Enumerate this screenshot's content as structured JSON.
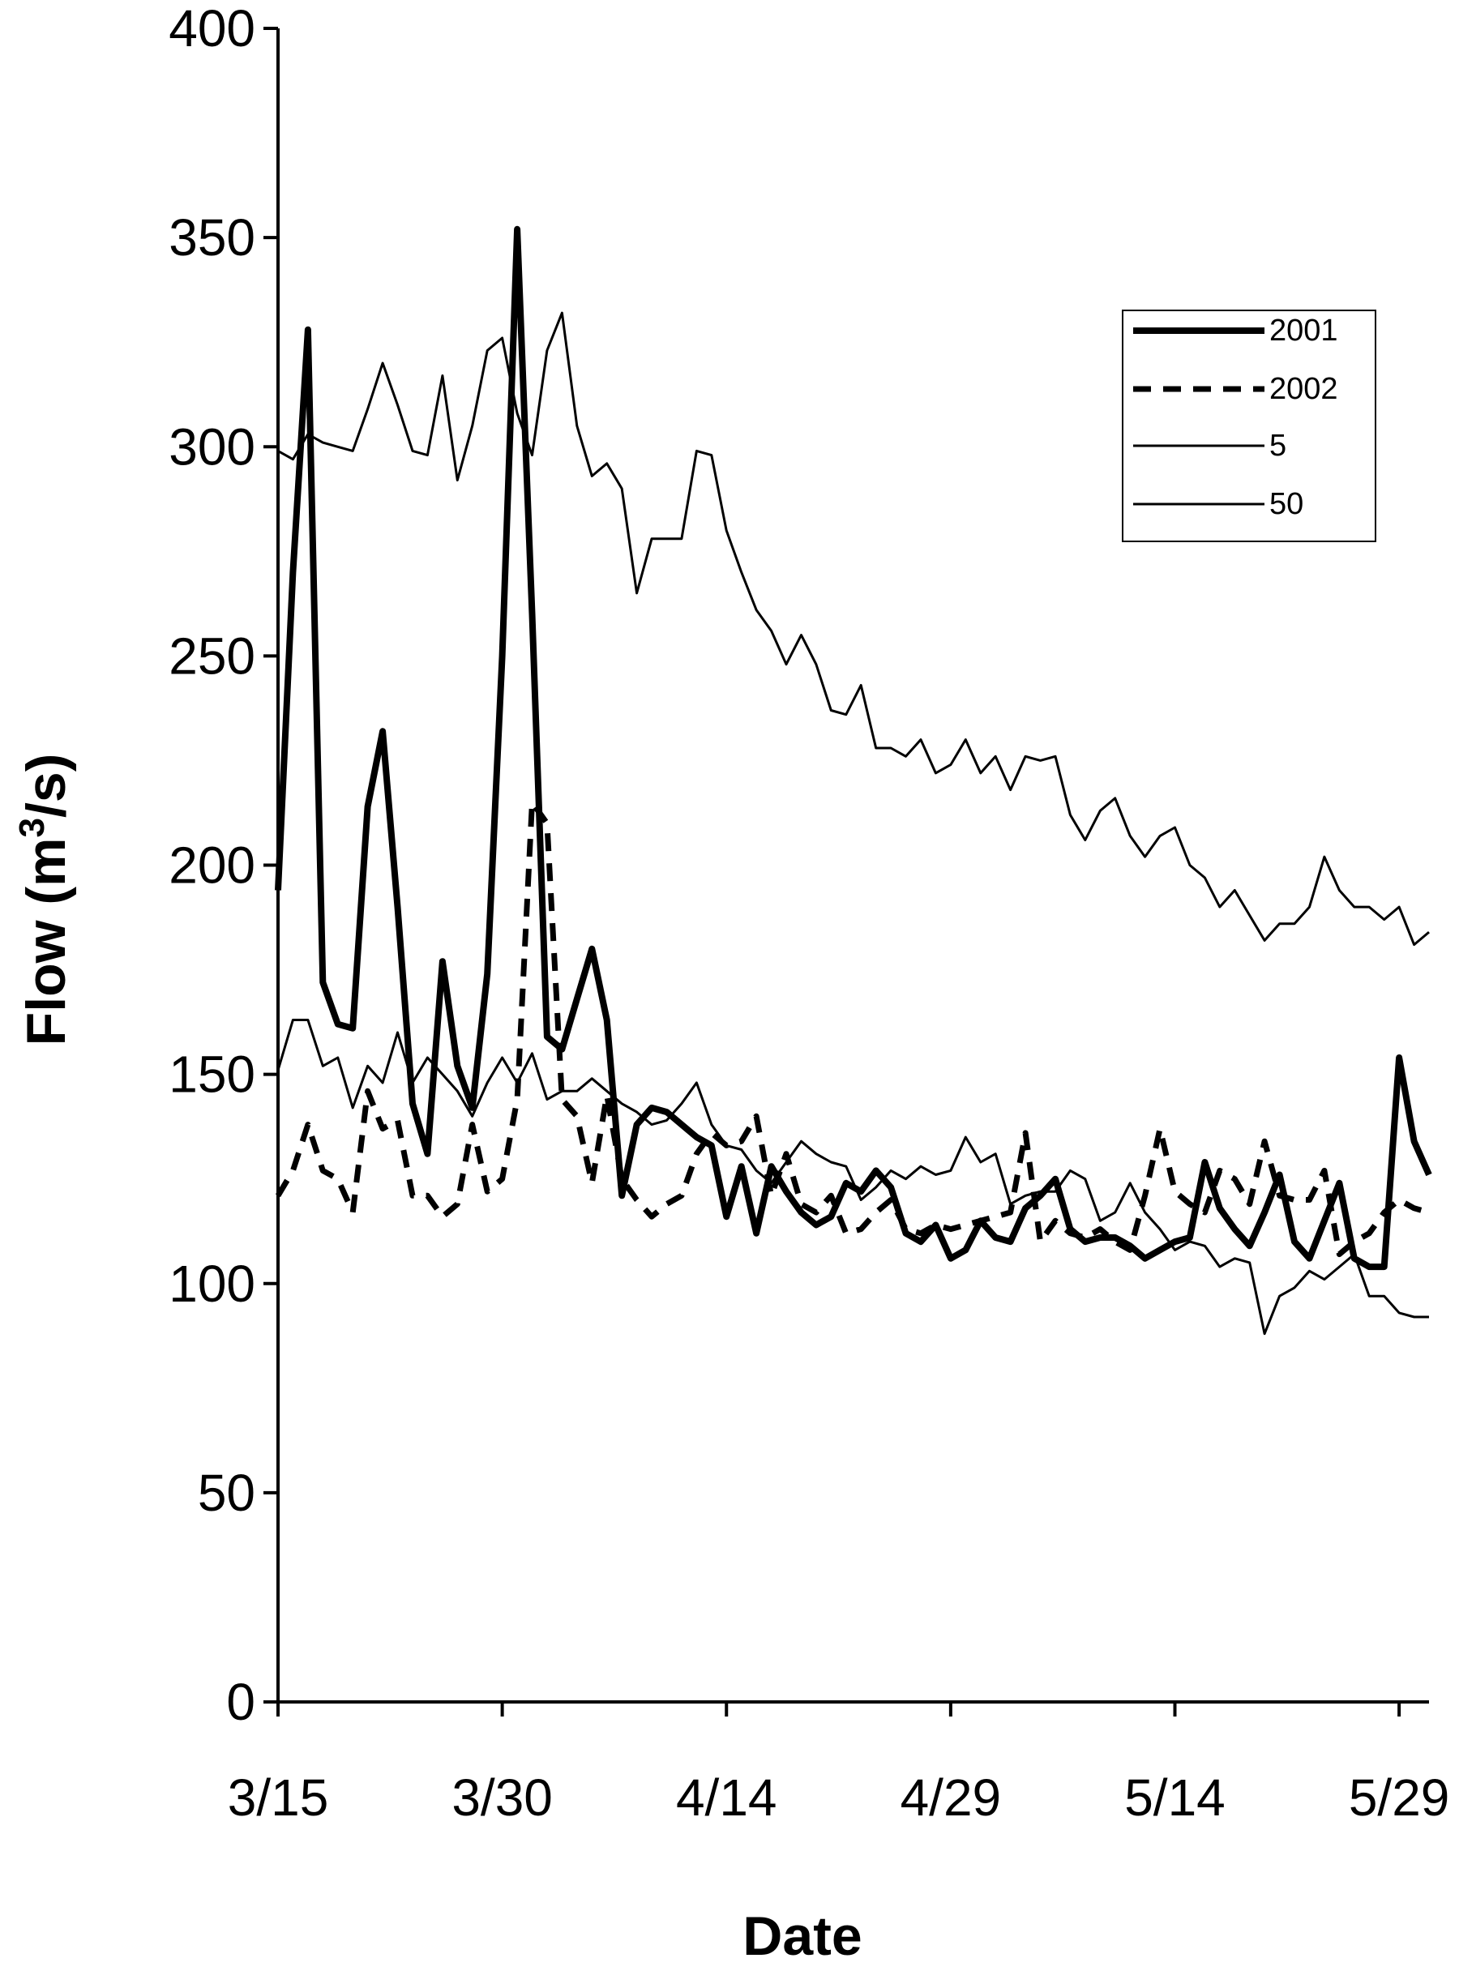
{
  "chart_data": {
    "type": "line",
    "xlabel": "Date",
    "ylabel_main": "Flow (m",
    "ylabel_sup": "3",
    "ylabel_tail": "/s)",
    "ylim": [
      0,
      400
    ],
    "yticks": [
      0,
      50,
      100,
      150,
      200,
      250,
      300,
      350,
      400
    ],
    "xlim": [
      0,
      77
    ],
    "xtick_labels": [
      "3/15",
      "3/30",
      "4/14",
      "4/29",
      "5/14",
      "5/29"
    ],
    "xtick_day": [
      0,
      15,
      30,
      45,
      60,
      75
    ],
    "legend_position": "top-right",
    "grid": false,
    "series": [
      {
        "name": "2001",
        "style": "thick",
        "values": [
          194,
          270,
          328,
          172,
          162,
          161,
          214,
          232,
          190,
          143,
          131,
          177,
          152,
          142,
          174,
          250,
          352,
          260,
          159,
          156,
          168,
          180,
          163,
          121,
          138,
          142,
          141,
          138,
          135,
          133,
          116,
          128,
          112,
          128,
          122,
          117,
          114,
          116,
          124,
          122,
          127,
          123,
          112,
          110,
          114,
          106,
          108,
          115,
          111,
          110,
          118,
          121,
          125,
          113,
          110,
          111,
          111,
          109,
          106,
          108,
          110,
          111,
          129,
          118,
          113,
          109,
          117,
          126,
          110,
          106,
          115,
          124,
          106,
          104,
          104,
          154,
          134,
          126
        ]
      },
      {
        "name": "2002",
        "style": "dashed",
        "values": [
          121,
          127,
          138,
          127,
          125,
          117,
          146,
          137,
          139,
          121,
          121,
          116,
          119,
          138,
          122,
          125,
          144,
          215,
          210,
          144,
          140,
          124,
          145,
          125,
          120,
          116,
          119,
          121,
          131,
          136,
          133,
          134,
          140,
          121,
          131,
          119,
          117,
          121,
          112,
          113,
          117,
          120,
          113,
          112,
          114,
          113,
          114,
          115,
          116,
          117,
          136,
          110,
          115,
          112,
          111,
          113,
          110,
          108,
          121,
          137,
          122,
          119,
          117,
          127,
          125,
          119,
          134,
          121,
          120,
          120,
          127,
          107,
          110,
          112,
          117,
          120,
          118,
          117
        ]
      },
      {
        "name": "5",
        "style": "thin",
        "values": [
          151,
          163,
          163,
          152,
          154,
          142,
          152,
          148,
          160,
          148,
          154,
          150,
          146,
          140,
          148,
          154,
          148,
          155,
          144,
          146,
          146,
          149,
          146,
          143,
          141,
          138,
          139,
          143,
          148,
          138,
          133,
          132,
          127,
          124,
          129,
          134,
          131,
          129,
          128,
          120,
          123,
          127,
          125,
          128,
          126,
          127,
          135,
          129,
          131,
          119,
          121,
          122,
          122,
          127,
          125,
          115,
          117,
          124,
          117,
          113,
          108,
          110,
          109,
          104,
          106,
          105,
          88,
          97,
          99,
          103,
          101,
          104,
          107,
          97,
          97,
          93,
          92,
          92
        ]
      },
      {
        "name": "50",
        "style": "thin",
        "values": [
          299,
          297,
          303,
          301,
          300,
          299,
          309,
          320,
          310,
          299,
          298,
          317,
          292,
          305,
          323,
          326,
          308,
          298,
          323,
          332,
          305,
          293,
          296,
          290,
          265,
          278,
          278,
          278,
          299,
          298,
          280,
          270,
          261,
          256,
          248,
          255,
          248,
          237,
          236,
          243,
          228,
          228,
          226,
          230,
          222,
          224,
          230,
          222,
          226,
          218,
          226,
          225,
          226,
          212,
          206,
          213,
          216,
          207,
          202,
          207,
          209,
          200,
          197,
          190,
          194,
          188,
          182,
          186,
          186,
          190,
          202,
          194,
          190,
          190,
          187,
          190,
          181,
          184
        ]
      }
    ]
  }
}
